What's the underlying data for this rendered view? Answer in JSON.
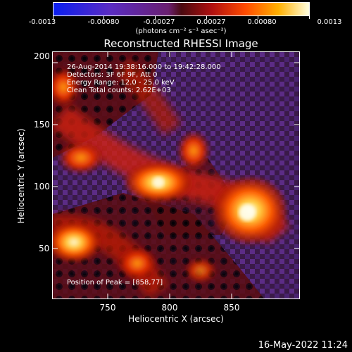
{
  "colorbar": {
    "labels": [
      "-0.0013",
      "-0.00080",
      "-0.00027",
      "0.00027",
      "0.00080",
      "0.0013"
    ],
    "units": "(photons cm⁻² s⁻¹ asec⁻²)"
  },
  "plot": {
    "title": "Reconstructed RHESSI Image",
    "info_lines": [
      "26-Aug-2014 19:38:16.000 to 19:42:28.000",
      "Detectors: 3F 6F 9F, Att 0",
      "Energy Range: 12.0 - 25.0 keV",
      "Clean     Total counts: 2.62E+03"
    ],
    "peak_text": "Position of Peak = [858,77]",
    "x_axis": {
      "title": "Heliocentric X (arcsec)",
      "ticks": [
        "750",
        "800",
        "850"
      ],
      "range": [
        707,
        895
      ]
    },
    "y_axis": {
      "title": "Heliocentric Y (arcsec)",
      "ticks": [
        "50",
        "100",
        "150",
        "200"
      ],
      "range": [
        6,
        204
      ]
    }
  },
  "timestamp": "16-May-2022 11:24"
}
